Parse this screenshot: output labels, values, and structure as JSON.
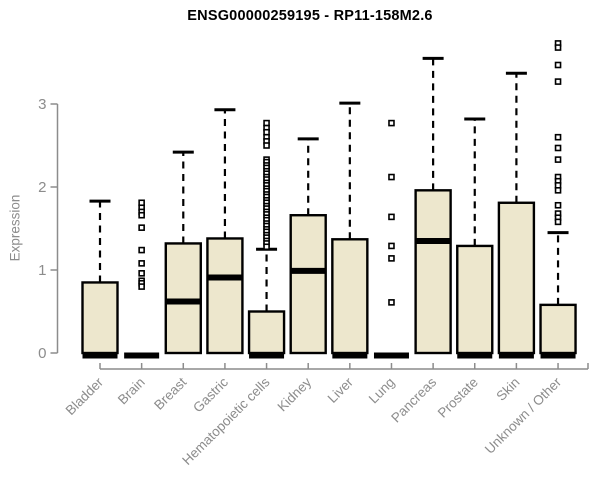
{
  "chart_data": {
    "type": "boxplot",
    "title": "ENSG00000259195 - RP11-158M2.6",
    "ylabel": "Expression",
    "xlabel": "",
    "yticks": [
      0,
      1,
      2,
      3
    ],
    "ylim": [
      0,
      3.8
    ],
    "grid": false,
    "legend": "none",
    "colors": {
      "box_fill": "#ede7cd",
      "box_line": "#000000",
      "axis": "#8c8c8c",
      "title_color": "#000000"
    },
    "categories": [
      "Bladder",
      "Brain",
      "Breast",
      "Gastric",
      "Hematopoietic cells",
      "Kidney",
      "Liver",
      "Lung",
      "Pancreas",
      "Prostate",
      "Skin",
      "Unknown / Other"
    ],
    "series": [
      {
        "name": "Bladder",
        "whisker_low": 0,
        "q1": 0,
        "median": 0.02,
        "q3": 0.85,
        "whisker_high": 1.83,
        "outliers": []
      },
      {
        "name": "Brain",
        "whisker_low": 0,
        "q1": 0,
        "median": 0.02,
        "q3": 0,
        "whisker_high": 0,
        "outliers": [
          1.81,
          1.75,
          1.7,
          1.66,
          1.51,
          1.24,
          1.08,
          0.96,
          0.87,
          0.84,
          0.8
        ]
      },
      {
        "name": "Breast",
        "whisker_low": 0,
        "q1": 0,
        "median": 0.62,
        "q3": 1.32,
        "whisker_high": 2.42,
        "outliers": []
      },
      {
        "name": "Gastric",
        "whisker_low": 0,
        "q1": 0,
        "median": 0.91,
        "q3": 1.38,
        "whisker_high": 2.93,
        "outliers": []
      },
      {
        "name": "Hematopoietic cells",
        "whisker_low": 0,
        "q1": 0,
        "median": 0.02,
        "q3": 0.5,
        "whisker_high": 1.25,
        "outliers": [
          2.77,
          2.71,
          2.66,
          2.6,
          2.55,
          2.5,
          2.33,
          2.3,
          2.26,
          2.23,
          2.19,
          2.16,
          2.12,
          2.09,
          2.05,
          2.02,
          1.98,
          1.95,
          1.91,
          1.88,
          1.84,
          1.81,
          1.77,
          1.74,
          1.7,
          1.67,
          1.63,
          1.6,
          1.56,
          1.53,
          1.49,
          1.46,
          1.42,
          1.39,
          1.35,
          1.32,
          1.28
        ]
      },
      {
        "name": "Kidney",
        "whisker_low": 0,
        "q1": 0,
        "median": 0.99,
        "q3": 1.66,
        "whisker_high": 2.58,
        "outliers": []
      },
      {
        "name": "Liver",
        "whisker_low": 0,
        "q1": 0,
        "median": 0.02,
        "q3": 1.37,
        "whisker_high": 3.01,
        "outliers": []
      },
      {
        "name": "Lung",
        "whisker_low": 0,
        "q1": 0,
        "median": 0.02,
        "q3": 0,
        "whisker_high": 0,
        "outliers": [
          2.77,
          2.12,
          1.64,
          1.29,
          1.14,
          0.61
        ]
      },
      {
        "name": "Pancreas",
        "whisker_low": 0,
        "q1": 0,
        "median": 1.35,
        "q3": 1.96,
        "whisker_high": 3.55,
        "outliers": []
      },
      {
        "name": "Prostate",
        "whisker_low": 0,
        "q1": 0,
        "median": 0.02,
        "q3": 1.29,
        "whisker_high": 2.82,
        "outliers": []
      },
      {
        "name": "Skin",
        "whisker_low": 0,
        "q1": 0,
        "median": 0.02,
        "q3": 1.81,
        "whisker_high": 3.37,
        "outliers": []
      },
      {
        "name": "Unknown / Other",
        "whisker_low": 0,
        "q1": 0,
        "median": 0.02,
        "q3": 0.58,
        "whisker_high": 1.45,
        "outliers": [
          3.73,
          3.68,
          3.47,
          3.27,
          2.6,
          2.47,
          2.33,
          2.12,
          2.07,
          2.02,
          1.96,
          1.78,
          1.68,
          1.63,
          1.58
        ]
      }
    ]
  }
}
